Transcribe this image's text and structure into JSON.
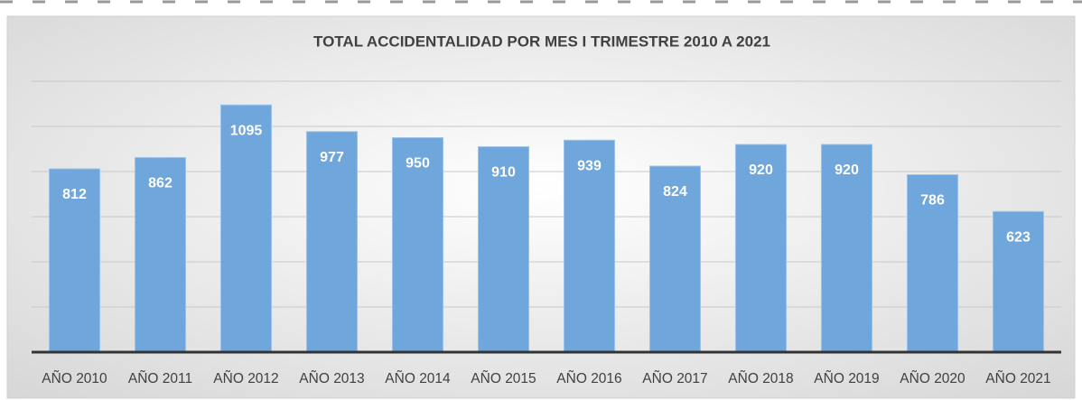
{
  "chart_data": {
    "type": "bar",
    "title": "TOTAL ACCIDENTALIDAD POR MES I TRIMESTRE 2010 A 2021",
    "categories": [
      "AÑO 2010",
      "AÑO 2011",
      "AÑO 2012",
      "AÑO 2013",
      "AÑO 2014",
      "AÑO 2015",
      "AÑO 2016",
      "AÑO 2017",
      "AÑO 2018",
      "AÑO 2019",
      "AÑO 2020",
      "AÑO 2021"
    ],
    "values": [
      812,
      862,
      1095,
      977,
      950,
      910,
      939,
      824,
      920,
      920,
      786,
      623
    ],
    "color": "#6fa6db",
    "ylim": [
      0,
      1200
    ],
    "yticks": [
      0,
      200,
      400,
      600,
      800,
      1000,
      1200
    ],
    "grid": true
  }
}
